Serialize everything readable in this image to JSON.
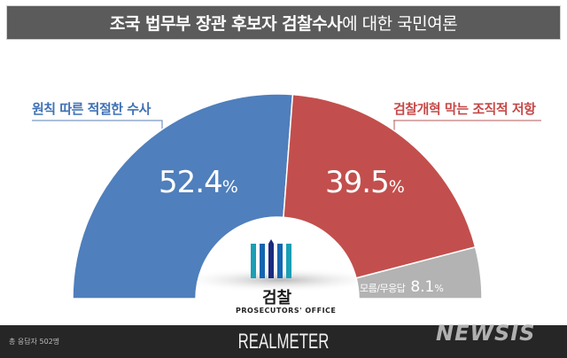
{
  "title": {
    "bold_part": "조국 법무부 장관 후보자 검찰수사",
    "light_part": "에 대한 국민여론"
  },
  "colors": {
    "blue": "#4f7fbc",
    "red": "#c24f4d",
    "gray": "#b3b3b3",
    "title_bg": "#5b5b5b",
    "footer_bg": "#262626"
  },
  "labels": {
    "blue": "원칙 따른 적절한 수사",
    "red": "검찰개혁 막는 조직적 저항",
    "gray": "모름/무응답"
  },
  "values_display": {
    "blue": "52.4",
    "red": "39.5",
    "gray": "8.1",
    "unit": "%"
  },
  "logo": {
    "name": "검찰",
    "subtitle": "PROSECUTORS' OFFICE"
  },
  "footer": {
    "respondents": "총 응답자 502명",
    "brand": "REALMETER",
    "watermark": "NEWSIS"
  },
  "chart_data": {
    "type": "pie",
    "subtype": "half-donut",
    "title": "조국 법무부 장관 후보자 검찰수사에 대한 국민여론",
    "categories": [
      "원칙 따른 적절한 수사",
      "검찰개혁 막는 조직적 저항",
      "모름/무응답"
    ],
    "values": [
      52.4,
      39.5,
      8.1
    ],
    "colors": [
      "#4f7fbc",
      "#c24f4d",
      "#b3b3b3"
    ],
    "unit": "%",
    "note": "총 응답자 502명",
    "source": "REALMETER"
  }
}
